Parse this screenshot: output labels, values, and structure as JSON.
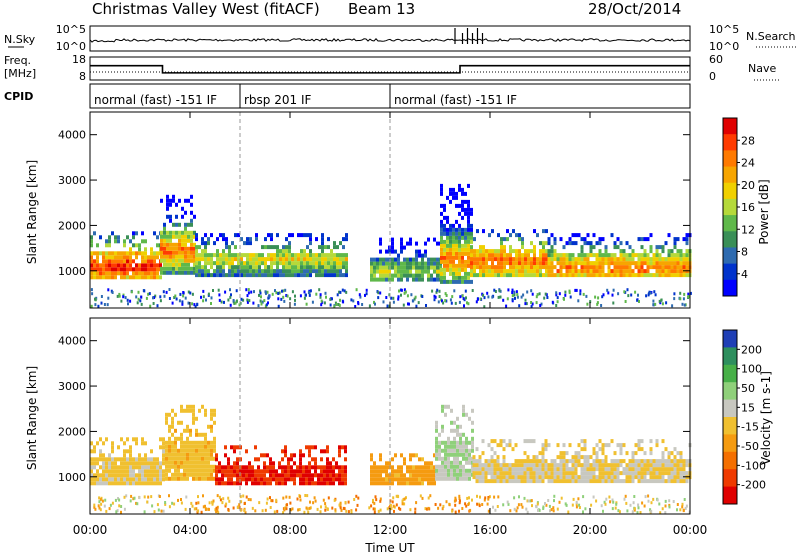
{
  "header": {
    "title": "Christmas Valley West (fitACF)",
    "beam": "Beam 13",
    "date": "28/Oct/2014"
  },
  "left_labels": {
    "nsky": "N.Sky",
    "freq_line1": "Freq.",
    "freq_line2": "[MHz]",
    "cpid": "CPID"
  },
  "right_labels": {
    "nsearch": "N.Search",
    "nave": "Nave"
  },
  "top_panels": {
    "nsky_ticks": [
      "10^5",
      "10^0"
    ],
    "nsearch_ticks": [
      "10^5",
      "10^0"
    ],
    "freq_ticks": [
      "18",
      "8"
    ],
    "nave_ticks": [
      "60",
      "0"
    ]
  },
  "cpid_segments": [
    {
      "label": "normal (fast) -151 IF",
      "start_h": 0
    },
    {
      "label": "rbsp 201 IF",
      "start_h": 6
    },
    {
      "label": "normal (fast) -151 IF",
      "start_h": 12
    }
  ],
  "colorbars": {
    "power": {
      "label": "Power [dB]",
      "ticks": [
        "28",
        "24",
        "20",
        "16",
        "12",
        "8",
        "4"
      ],
      "colors": [
        "#e00000",
        "#ff3b00",
        "#ff7a00",
        "#f7a500",
        "#f0d000",
        "#b5d93a",
        "#5fb84a",
        "#3a8f57",
        "#2e6bb0",
        "#0033cc",
        "#0000ff"
      ]
    },
    "velocity": {
      "label": "Velocity [m s-1]",
      "ticks": [
        "200",
        "100",
        "50",
        "15",
        "-15",
        "-50",
        "-100",
        "-200"
      ],
      "colors": [
        "#1f3fb5",
        "#2e8f5e",
        "#47b048",
        "#8fd07a",
        "#c8c8c0",
        "#f0c030",
        "#f59b10",
        "#f46f00",
        "#ef3a00",
        "#e00000"
      ]
    }
  },
  "chart_data": {
    "type": "heatmap",
    "xlabel": "Time UT",
    "x_ticks": [
      "00:00",
      "04:00",
      "08:00",
      "12:00",
      "16:00",
      "20:00",
      "00:00"
    ],
    "xlim_hours": [
      0,
      24
    ],
    "ylabel": "Slant Range [km]",
    "y_ticks": [
      1000,
      2000,
      3000,
      4000
    ],
    "ylim_km": [
      180,
      4500
    ],
    "grid": false,
    "cpid_change_hours": [
      6,
      12
    ],
    "frequency_mhz": [
      {
        "start_h": 0,
        "end_h": 2.9,
        "value": 14.5
      },
      {
        "start_h": 2.9,
        "end_h": 14.8,
        "value": 10.7
      },
      {
        "start_h": 14.8,
        "end_h": 24,
        "value": 14.5
      }
    ],
    "panels": [
      {
        "name": "power",
        "echo_regions": [
          {
            "start_h": 0.0,
            "end_h": 2.8,
            "bottom_km": 900,
            "top_km": 1900,
            "core_km": 1150,
            "level": 0.95
          },
          {
            "start_h": 2.8,
            "end_h": 4.2,
            "bottom_km": 1000,
            "top_km": 2700,
            "core_km": 1500,
            "level": 0.85
          },
          {
            "start_h": 4.2,
            "end_h": 10.3,
            "bottom_km": 950,
            "top_km": 1900,
            "core_km": 1300,
            "level": 0.6
          },
          {
            "start_h": 11.2,
            "end_h": 14.0,
            "bottom_km": 850,
            "top_km": 1800,
            "core_km": 1050,
            "level": 0.5
          },
          {
            "start_h": 14.0,
            "end_h": 15.2,
            "bottom_km": 800,
            "top_km": 3000,
            "core_km": 1300,
            "level": 0.85
          },
          {
            "start_h": 15.2,
            "end_h": 18.3,
            "bottom_km": 950,
            "top_km": 2000,
            "core_km": 1250,
            "level": 0.85
          },
          {
            "start_h": 18.3,
            "end_h": 24.0,
            "bottom_km": 950,
            "top_km": 1900,
            "core_km": 1100,
            "level": 0.8
          }
        ]
      },
      {
        "name": "velocity",
        "echo_regions": [
          {
            "start_h": 0.0,
            "end_h": 3.0,
            "bottom_km": 900,
            "top_km": 1900,
            "velocity": -10
          },
          {
            "start_h": 3.0,
            "end_h": 5.0,
            "bottom_km": 1000,
            "top_km": 2600,
            "velocity": -30
          },
          {
            "start_h": 5.0,
            "end_h": 10.2,
            "bottom_km": 900,
            "top_km": 1700,
            "velocity": -180
          },
          {
            "start_h": 11.2,
            "end_h": 13.8,
            "bottom_km": 900,
            "top_km": 1600,
            "velocity": -60
          },
          {
            "start_h": 13.8,
            "end_h": 15.3,
            "bottom_km": 1000,
            "top_km": 2600,
            "velocity": 40
          },
          {
            "start_h": 15.3,
            "end_h": 24.0,
            "bottom_km": 950,
            "top_km": 1900,
            "velocity": 0
          }
        ]
      }
    ]
  }
}
